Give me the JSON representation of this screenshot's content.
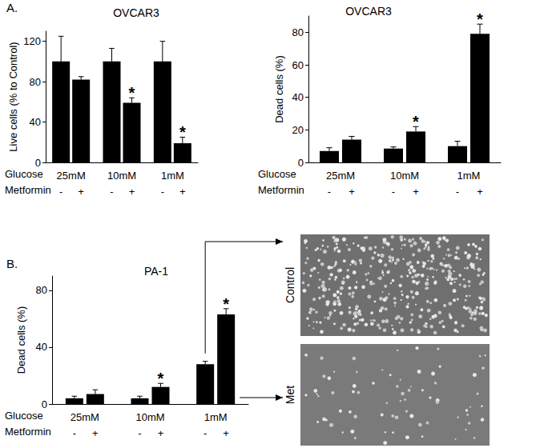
{
  "panels": [
    "A.",
    "B."
  ],
  "chart_data": [
    {
      "type": "bar",
      "title": "OVCAR3",
      "y_label": "Live cells (% to Control)",
      "x_label": "Glucose",
      "series_label": "Metformin",
      "categories": [
        "25mM",
        "10mM",
        "1mM"
      ],
      "series": [
        {
          "name": "-",
          "color": "#000000",
          "values": [
            100,
            100,
            100
          ],
          "errors": [
            25,
            13,
            20
          ],
          "marks": [
            null,
            null,
            null
          ]
        },
        {
          "name": "+",
          "color": "#000000",
          "values": [
            82,
            59,
            19
          ],
          "errors": [
            3,
            5,
            6
          ],
          "marks": [
            null,
            "*",
            "*"
          ]
        }
      ],
      "ylim": [
        0,
        130
      ],
      "yticks": [
        0,
        40,
        80,
        120
      ],
      "grid": false
    },
    {
      "type": "bar",
      "title": "OVCAR3",
      "y_label": "Dead cells (%)",
      "x_label": "Glucose",
      "series_label": "Metformin",
      "categories": [
        "25mM",
        "10mM",
        "1mM"
      ],
      "series": [
        {
          "name": "-",
          "color": "#000000",
          "values": [
            7,
            8.5,
            10
          ],
          "errors": [
            2,
            1,
            3
          ],
          "marks": [
            null,
            null,
            null
          ]
        },
        {
          "name": "+",
          "color": "#000000",
          "values": [
            14,
            19,
            79
          ],
          "errors": [
            2,
            3,
            6
          ],
          "marks": [
            null,
            "*",
            "*"
          ]
        }
      ],
      "ylim": [
        0,
        90
      ],
      "yticks": [
        0,
        20,
        40,
        60,
        80
      ],
      "grid": false
    },
    {
      "type": "bar",
      "title": "PA-1",
      "y_label": "Dead cells (%)",
      "x_label": "Glucose",
      "series_label": "Metformin",
      "categories": [
        "25mM",
        "10mM",
        "1mM"
      ],
      "series": [
        {
          "name": "-",
          "color": "#000000",
          "values": [
            4,
            4,
            28
          ],
          "errors": [
            1.5,
            1.5,
            2
          ],
          "marks": [
            null,
            null,
            null
          ]
        },
        {
          "name": "+",
          "color": "#000000",
          "values": [
            7,
            12,
            63
          ],
          "errors": [
            3,
            2.5,
            4
          ],
          "marks": [
            null,
            "*",
            "*"
          ]
        }
      ],
      "ylim": [
        0,
        90
      ],
      "yticks": [
        0,
        40,
        80
      ],
      "grid": false
    }
  ],
  "images": [
    {
      "label": "Control"
    },
    {
      "label": "Met"
    }
  ]
}
